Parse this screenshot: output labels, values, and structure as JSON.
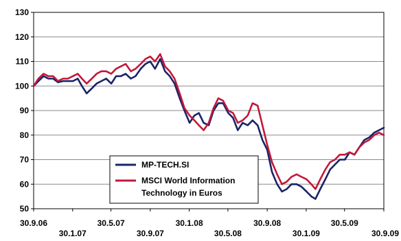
{
  "chart_data": {
    "type": "line",
    "title": "",
    "xlabel": "",
    "ylabel": "",
    "x_ticks": [
      "30.9.06",
      "30.1.07",
      "30.5.07",
      "30.9.07",
      "30.1.08",
      "30.5.08",
      "30.9.08",
      "30.1.09",
      "30.5.09",
      "30.9.09"
    ],
    "x_tick_dates": [
      "2006-09-30",
      "2007-01-30",
      "2007-05-30",
      "2007-09-30",
      "2008-01-30",
      "2008-05-30",
      "2008-09-30",
      "2009-01-30",
      "2009-05-30",
      "2009-09-30"
    ],
    "xlim": [
      "2006-09-30",
      "2009-09-30"
    ],
    "ylim": [
      50,
      130
    ],
    "y_ticks": [
      50,
      60,
      70,
      80,
      90,
      100,
      110,
      120,
      130
    ],
    "grid": {
      "horizontal": true,
      "vertical": false
    },
    "legend_position": "bottom-left",
    "series": [
      {
        "name": "MP-TECH.SI",
        "color": "#1a2366",
        "points": [
          [
            "2006-09-30",
            100
          ],
          [
            "2006-10-15",
            102
          ],
          [
            "2006-10-31",
            104
          ],
          [
            "2006-11-15",
            103
          ],
          [
            "2006-11-30",
            103
          ],
          [
            "2006-12-15",
            101.5
          ],
          [
            "2006-12-31",
            102
          ],
          [
            "2007-01-15",
            102
          ],
          [
            "2007-01-31",
            102
          ],
          [
            "2007-02-15",
            103
          ],
          [
            "2007-02-28",
            100
          ],
          [
            "2007-03-15",
            97
          ],
          [
            "2007-03-31",
            99
          ],
          [
            "2007-04-15",
            101
          ],
          [
            "2007-04-30",
            102
          ],
          [
            "2007-05-15",
            103
          ],
          [
            "2007-05-31",
            101
          ],
          [
            "2007-06-15",
            104
          ],
          [
            "2007-06-30",
            104
          ],
          [
            "2007-07-15",
            105
          ],
          [
            "2007-07-31",
            103
          ],
          [
            "2007-08-15",
            104
          ],
          [
            "2007-08-31",
            107
          ],
          [
            "2007-09-15",
            109
          ],
          [
            "2007-09-30",
            110
          ],
          [
            "2007-10-15",
            107
          ],
          [
            "2007-10-31",
            111
          ],
          [
            "2007-11-15",
            106
          ],
          [
            "2007-11-30",
            104
          ],
          [
            "2007-12-15",
            101
          ],
          [
            "2007-12-31",
            95
          ],
          [
            "2008-01-15",
            90
          ],
          [
            "2008-01-31",
            85
          ],
          [
            "2008-02-15",
            88
          ],
          [
            "2008-02-29",
            89
          ],
          [
            "2008-03-15",
            85
          ],
          [
            "2008-03-31",
            84
          ],
          [
            "2008-04-15",
            90
          ],
          [
            "2008-04-30",
            93
          ],
          [
            "2008-05-15",
            93
          ],
          [
            "2008-05-31",
            89
          ],
          [
            "2008-06-15",
            87
          ],
          [
            "2008-06-30",
            82
          ],
          [
            "2008-07-15",
            85
          ],
          [
            "2008-07-31",
            84
          ],
          [
            "2008-08-15",
            86
          ],
          [
            "2008-08-31",
            84
          ],
          [
            "2008-09-15",
            78
          ],
          [
            "2008-09-30",
            74
          ],
          [
            "2008-10-15",
            65
          ],
          [
            "2008-10-31",
            60
          ],
          [
            "2008-11-15",
            57
          ],
          [
            "2008-11-30",
            58
          ],
          [
            "2008-12-15",
            60
          ],
          [
            "2008-12-31",
            60
          ],
          [
            "2009-01-15",
            59
          ],
          [
            "2009-01-31",
            57
          ],
          [
            "2009-02-15",
            55
          ],
          [
            "2009-02-28",
            54
          ],
          [
            "2009-03-15",
            58
          ],
          [
            "2009-03-31",
            62
          ],
          [
            "2009-04-15",
            66
          ],
          [
            "2009-04-30",
            68
          ],
          [
            "2009-05-15",
            70
          ],
          [
            "2009-05-31",
            70
          ],
          [
            "2009-06-15",
            73
          ],
          [
            "2009-06-30",
            72
          ],
          [
            "2009-07-15",
            75
          ],
          [
            "2009-07-31",
            78
          ],
          [
            "2009-08-15",
            79
          ],
          [
            "2009-08-31",
            81
          ],
          [
            "2009-09-15",
            82
          ],
          [
            "2009-09-30",
            83
          ]
        ]
      },
      {
        "name": "MSCI World Information Technology in Euros",
        "color": "#c3173b",
        "points": [
          [
            "2006-09-30",
            100
          ],
          [
            "2006-10-15",
            103
          ],
          [
            "2006-10-31",
            105
          ],
          [
            "2006-11-15",
            104
          ],
          [
            "2006-11-30",
            104
          ],
          [
            "2006-12-15",
            102
          ],
          [
            "2006-12-31",
            103
          ],
          [
            "2007-01-15",
            103
          ],
          [
            "2007-01-31",
            104
          ],
          [
            "2007-02-15",
            105
          ],
          [
            "2007-02-28",
            103
          ],
          [
            "2007-03-15",
            101
          ],
          [
            "2007-03-31",
            103
          ],
          [
            "2007-04-15",
            105
          ],
          [
            "2007-04-30",
            106
          ],
          [
            "2007-05-15",
            106
          ],
          [
            "2007-05-31",
            105
          ],
          [
            "2007-06-15",
            107
          ],
          [
            "2007-06-30",
            108
          ],
          [
            "2007-07-15",
            109
          ],
          [
            "2007-07-31",
            106
          ],
          [
            "2007-08-15",
            107
          ],
          [
            "2007-08-31",
            109
          ],
          [
            "2007-09-15",
            111
          ],
          [
            "2007-09-30",
            112
          ],
          [
            "2007-10-15",
            110
          ],
          [
            "2007-10-31",
            113
          ],
          [
            "2007-11-15",
            108
          ],
          [
            "2007-11-30",
            106
          ],
          [
            "2007-12-15",
            103
          ],
          [
            "2007-12-31",
            97
          ],
          [
            "2008-01-15",
            91
          ],
          [
            "2008-01-31",
            88
          ],
          [
            "2008-02-15",
            86
          ],
          [
            "2008-02-29",
            84
          ],
          [
            "2008-03-15",
            82
          ],
          [
            "2008-03-31",
            85
          ],
          [
            "2008-04-15",
            91
          ],
          [
            "2008-04-30",
            95
          ],
          [
            "2008-05-15",
            94
          ],
          [
            "2008-05-31",
            90
          ],
          [
            "2008-06-15",
            89
          ],
          [
            "2008-06-30",
            85
          ],
          [
            "2008-07-15",
            86
          ],
          [
            "2008-07-31",
            88
          ],
          [
            "2008-08-15",
            93
          ],
          [
            "2008-08-31",
            92
          ],
          [
            "2008-09-15",
            84
          ],
          [
            "2008-09-30",
            76
          ],
          [
            "2008-10-15",
            69
          ],
          [
            "2008-10-31",
            64
          ],
          [
            "2008-11-15",
            60
          ],
          [
            "2008-11-30",
            61
          ],
          [
            "2008-12-15",
            63
          ],
          [
            "2008-12-31",
            64
          ],
          [
            "2009-01-15",
            63
          ],
          [
            "2009-01-31",
            62
          ],
          [
            "2009-02-15",
            60
          ],
          [
            "2009-02-28",
            58
          ],
          [
            "2009-03-15",
            62
          ],
          [
            "2009-03-31",
            66
          ],
          [
            "2009-04-15",
            69
          ],
          [
            "2009-04-30",
            70
          ],
          [
            "2009-05-15",
            72
          ],
          [
            "2009-05-31",
            72
          ],
          [
            "2009-06-15",
            73
          ],
          [
            "2009-06-30",
            72
          ],
          [
            "2009-07-15",
            75
          ],
          [
            "2009-07-31",
            77
          ],
          [
            "2009-08-15",
            78
          ],
          [
            "2009-08-31",
            80
          ],
          [
            "2009-09-15",
            81
          ],
          [
            "2009-09-30",
            80
          ]
        ]
      }
    ]
  },
  "legend": {
    "items": [
      {
        "label_lines": [
          "MP-TECH.SI"
        ],
        "color": "#1a2366"
      },
      {
        "label_lines": [
          "MSCI World Information",
          "Technology in Euros"
        ],
        "color": "#c3173b"
      }
    ]
  }
}
